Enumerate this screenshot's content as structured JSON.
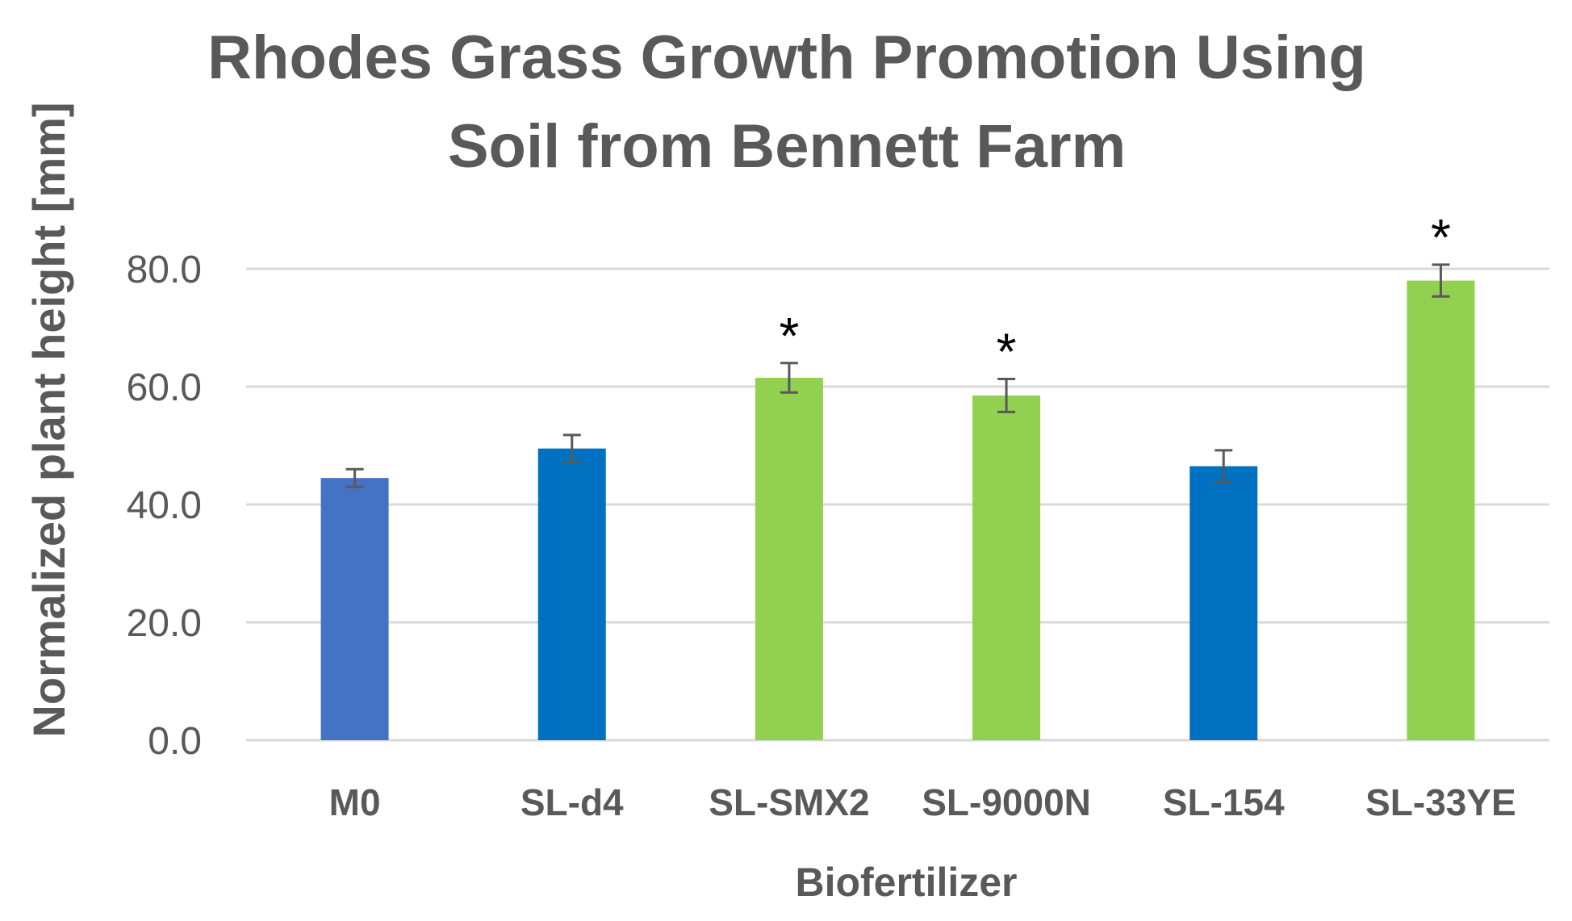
{
  "chart_data": {
    "type": "bar",
    "title_lines": [
      "Rhodes Grass Growth Promotion Using",
      "Soil from Bennett Farm"
    ],
    "xlabel": "Biofertilizer",
    "ylabel": "Normalized plant height [mm]",
    "ylim": [
      0,
      80
    ],
    "yticks": [
      "0.0",
      "20.0",
      "40.0",
      "60.0",
      "80.0"
    ],
    "ytick_values": [
      0,
      20,
      40,
      60,
      80
    ],
    "grid": true,
    "legend": "none",
    "categories": [
      "M0",
      "SL-d4",
      "SL-SMX2",
      "SL-9000N",
      "SL-154",
      "SL-33YE"
    ],
    "values": [
      44.5,
      49.5,
      61.5,
      58.5,
      46.5,
      78.0
    ],
    "errors": [
      1.5,
      2.3,
      2.5,
      2.8,
      2.7,
      2.7
    ],
    "significance": [
      "",
      "",
      "*",
      "*",
      "",
      "*"
    ],
    "colors": [
      "#4472C4",
      "#0070C0",
      "#92D050",
      "#92D050",
      "#0070C0",
      "#92D050"
    ],
    "gridline_color": "#D9D9D9",
    "axis_text_color": "#595959",
    "error_bar_color": "#595959"
  }
}
